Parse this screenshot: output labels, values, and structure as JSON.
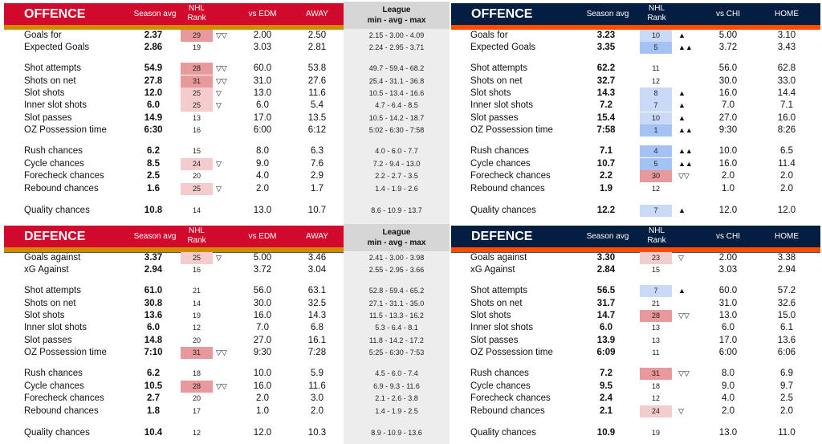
{
  "colors": {
    "left_header": "#d10a2d",
    "left_stripe": "#cf8a00",
    "right_header": "#041e42",
    "right_stripe": "#fc4c02"
  },
  "league_header": {
    "line1": "League",
    "line2": "min - avg - max"
  },
  "left": {
    "columns": {
      "avg": "Season avg",
      "rank1": "NHL",
      "rank2": "Rank",
      "vs": "vs EDM",
      "venue": "AWAY"
    },
    "sections": [
      {
        "title": "OFFENCE",
        "rows": [
          [
            "Goals for",
            "2.37",
            "29",
            "dd",
            "▽▽",
            "2.00",
            "2.50",
            "2.15 - 3.00 - 4.09"
          ],
          [
            "Expected Goals",
            "2.86",
            "19",
            "",
            "",
            "3.03",
            "2.81",
            "2.24 - 2.95 - 3.71"
          ],
          [
            "Shot attempts",
            "54.9",
            "28",
            "dd",
            "▽▽",
            "60.0",
            "53.8",
            "49.7 - 59.4 - 68.2"
          ],
          [
            "Shots on net",
            "27.8",
            "31",
            "dd",
            "▽▽",
            "31.0",
            "27.6",
            "25.4 - 31.1 - 36.8"
          ],
          [
            "Slot shots",
            "12.0",
            "25",
            "d",
            "▽",
            "13.0",
            "11.6",
            "10.5 - 13.4 - 16.6"
          ],
          [
            "Inner slot shots",
            "6.0",
            "25",
            "d",
            "▽",
            "6.0",
            "5.4",
            "4.7 - 6.4 - 8.5"
          ],
          [
            "Slot passes",
            "14.9",
            "13",
            "",
            "",
            "17.0",
            "13.5",
            "10.5 - 14.2 - 18.7"
          ],
          [
            "OZ Possession time",
            "6:30",
            "16",
            "",
            "",
            "6:00",
            "6:12",
            "5:02 - 6:30 - 7:58"
          ],
          [
            "Rush chances",
            "6.2",
            "15",
            "",
            "",
            "8.0",
            "6.3",
            "4.0 - 6.0 - 7.7"
          ],
          [
            "Cycle chances",
            "8.5",
            "24",
            "d",
            "▽",
            "9.0",
            "7.6",
            "7.2 - 9.4 - 13.0"
          ],
          [
            "Forecheck chances",
            "2.5",
            "20",
            "",
            "",
            "4.0",
            "2.9",
            "2.2 - 2.7 - 3.5"
          ],
          [
            "Rebound chances",
            "1.6",
            "25",
            "d",
            "▽",
            "2.0",
            "1.7",
            "1.4 - 1.9 - 2.6"
          ],
          [
            "Quality chances",
            "10.8",
            "14",
            "",
            "",
            "13.0",
            "10.7",
            "8.6 - 10.9 - 13.7"
          ]
        ]
      },
      {
        "title": "DEFENCE",
        "rows": [
          [
            "Goals against",
            "3.37",
            "25",
            "d",
            "▽",
            "5.00",
            "3.46",
            "2.41 - 3.00 - 3.98"
          ],
          [
            "xG Against",
            "2.94",
            "16",
            "",
            "",
            "3.72",
            "3.04",
            "2.55 - 2.95 - 3.66"
          ],
          [
            "Shot attempts",
            "61.0",
            "21",
            "",
            "",
            "56.0",
            "63.1",
            "52.8 - 59.4 - 65.2"
          ],
          [
            "Shots on net",
            "30.8",
            "14",
            "",
            "",
            "30.0",
            "32.5",
            "27.1 - 31.1 - 35.0"
          ],
          [
            "Slot shots",
            "13.6",
            "19",
            "",
            "",
            "16.0",
            "14.3",
            "11.5 - 13.3 - 16.2"
          ],
          [
            "Inner slot shots",
            "6.0",
            "12",
            "",
            "",
            "7.0",
            "6.8",
            "5.3 - 6.4 - 8.1"
          ],
          [
            "Slot passes",
            "14.8",
            "20",
            "",
            "",
            "27.0",
            "16.1",
            "11.8 - 14.2 - 17.2"
          ],
          [
            "OZ Possession time",
            "7:10",
            "31",
            "dd",
            "▽▽",
            "9:30",
            "7:28",
            "5:25 - 6:30 - 7:53"
          ],
          [
            "Rush chances",
            "6.2",
            "18",
            "",
            "",
            "10.0",
            "5.9",
            "4.5 - 6.0 - 7.4"
          ],
          [
            "Cycle chances",
            "10.5",
            "28",
            "dd",
            "▽▽",
            "16.0",
            "11.6",
            "6.9 - 9.3 - 11.6"
          ],
          [
            "Forecheck chances",
            "2.7",
            "20",
            "",
            "",
            "2.0",
            "3.0",
            "2.1 - 2.6 - 3.8"
          ],
          [
            "Rebound chances",
            "1.8",
            "17",
            "",
            "",
            "1.0",
            "2.0",
            "1.4 - 1.9 - 2.5"
          ],
          [
            "Quality chances",
            "10.4",
            "12",
            "",
            "",
            "12.0",
            "10.3",
            "8.9 - 10.9 - 13.6"
          ]
        ]
      }
    ]
  },
  "right": {
    "columns": {
      "avg": "Season avg",
      "rank1": "NHL",
      "rank2": "Rank",
      "vs": "vs CHI",
      "venue": "HOME"
    },
    "sections": [
      {
        "title": "OFFENCE",
        "rows": [
          [
            "Goals for",
            "3.23",
            "10",
            "u",
            "▲",
            "5.00",
            "3.10"
          ],
          [
            "Expected Goals",
            "3.35",
            "5",
            "uu",
            "▲▲",
            "3.72",
            "3.43"
          ],
          [
            "Shot attempts",
            "62.2",
            "11",
            "",
            "",
            "56.0",
            "62.8"
          ],
          [
            "Shots on net",
            "32.7",
            "12",
            "",
            "",
            "30.0",
            "33.0"
          ],
          [
            "Slot shots",
            "14.3",
            "8",
            "u",
            "▲",
            "16.0",
            "14.4"
          ],
          [
            "Inner slot shots",
            "7.2",
            "7",
            "u",
            "▲",
            "7.0",
            "7.1"
          ],
          [
            "Slot passes",
            "15.4",
            "10",
            "u",
            "▲",
            "27.0",
            "16.0"
          ],
          [
            "OZ Possession time",
            "7:58",
            "1",
            "uu",
            "▲▲",
            "9:30",
            "8:26"
          ],
          [
            "Rush chances",
            "7.1",
            "4",
            "uu",
            "▲▲",
            "10.0",
            "6.5"
          ],
          [
            "Cycle chances",
            "10.7",
            "5",
            "uu",
            "▲▲",
            "16.0",
            "11.4"
          ],
          [
            "Forecheck chances",
            "2.2",
            "30",
            "dd",
            "▽▽",
            "2.0",
            "2.0"
          ],
          [
            "Rebound chances",
            "1.9",
            "12",
            "",
            "",
            "1.0",
            "2.0"
          ],
          [
            "Quality chances",
            "12.2",
            "7",
            "u",
            "▲",
            "12.0",
            "12.0"
          ]
        ]
      },
      {
        "title": "DEFENCE",
        "rows": [
          [
            "Goals against",
            "3.30",
            "23",
            "d",
            "▽",
            "2.00",
            "3.38"
          ],
          [
            "xG Against",
            "2.84",
            "15",
            "",
            "",
            "3.03",
            "2.94"
          ],
          [
            "Shot attempts",
            "56.5",
            "7",
            "u",
            "▲",
            "60.0",
            "57.2"
          ],
          [
            "Shots on net",
            "31.7",
            "21",
            "",
            "",
            "31.0",
            "32.6"
          ],
          [
            "Slot shots",
            "14.7",
            "28",
            "dd",
            "▽▽",
            "13.0",
            "15.0"
          ],
          [
            "Inner slot shots",
            "6.0",
            "13",
            "",
            "",
            "6.0",
            "6.1"
          ],
          [
            "Slot passes",
            "13.9",
            "13",
            "",
            "",
            "17.0",
            "13.6"
          ],
          [
            "OZ Possession time",
            "6:09",
            "11",
            "",
            "",
            "6:00",
            "6:06"
          ],
          [
            "Rush chances",
            "7.2",
            "31",
            "dd",
            "▽▽",
            "8.0",
            "6.9"
          ],
          [
            "Cycle chances",
            "9.5",
            "18",
            "",
            "",
            "9.0",
            "9.7"
          ],
          [
            "Forecheck chances",
            "2.4",
            "12",
            "",
            "",
            "4.0",
            "2.5"
          ],
          [
            "Rebound chances",
            "2.1",
            "24",
            "d",
            "▽",
            "2.0",
            "2.0"
          ],
          [
            "Quality chances",
            "10.9",
            "19",
            "",
            "",
            "13.0",
            "11.0"
          ]
        ]
      }
    ]
  }
}
